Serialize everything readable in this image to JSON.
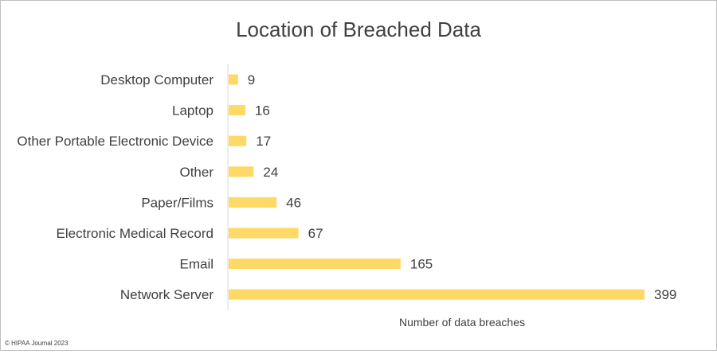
{
  "chart_data": {
    "type": "bar",
    "orientation": "horizontal",
    "title": "Location of Breached Data",
    "xlabel": "Number of data breaches",
    "ylabel": "",
    "categories": [
      "Desktop Computer",
      "Laptop",
      "Other Portable Electronic Device",
      "Other",
      "Paper/Films",
      "Electronic Medical Record",
      "Email",
      "Network Server"
    ],
    "values": [
      9,
      16,
      17,
      24,
      46,
      67,
      165,
      399
    ],
    "xlim": [
      0,
      399
    ],
    "bar_color": "#ffd966",
    "data_labels": true,
    "grid": false,
    "legend": "none"
  },
  "footer": {
    "credit": "© HIPAA Journal 2023"
  },
  "colors": {
    "text": "#404040",
    "axis": "#d9d9d9",
    "border": "#bfbfbf",
    "background": "#ffffff"
  }
}
